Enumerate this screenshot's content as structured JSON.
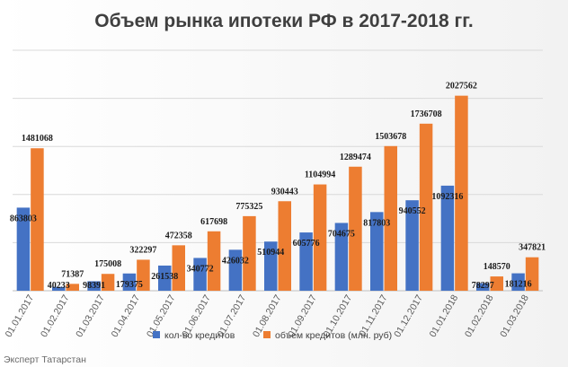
{
  "chart_data": {
    "type": "bar",
    "title": "Объем рынка ипотеки РФ в 2017-2018 гг.",
    "categories": [
      "01.01.2017",
      "01.02.2017",
      "01.03.2017",
      "01.04.2017",
      "01.05.2017",
      "01.06.2017",
      "01.07.2017",
      "01.08.2017",
      "01.09.2017",
      "01.10.2017",
      "01.11.2017",
      "01.12.2017",
      "01.01.2018",
      "01.02.2018",
      "01.03.2018"
    ],
    "series": [
      {
        "name": "кол-во кредитов",
        "color": "#4472c4",
        "values": [
          863803,
          40233,
          98391,
          179375,
          261538,
          340772,
          426032,
          510944,
          605776,
          704675,
          817803,
          940552,
          1092316,
          78297,
          181216
        ],
        "labels": [
          "863803",
          "40233",
          "98391",
          "179375",
          "261538",
          "340772",
          "426032",
          "510944",
          "605776",
          "704675",
          "817803",
          "940552",
          "1092316",
          "78297",
          "181216"
        ]
      },
      {
        "name": "объем кредитов (млн. руб)",
        "color": "#ed7d31",
        "values": [
          1481068,
          71387,
          175008,
          322297,
          472358,
          617698,
          775325,
          930443,
          1104994,
          1289474,
          1503678,
          1736708,
          2027562,
          148570,
          347821
        ],
        "labels": [
          "1481068",
          "71387",
          "175008",
          "322297",
          "472358",
          "617698",
          "775325",
          "930443",
          "1104994",
          "1289474",
          "1503678",
          "1736708",
          "2027562",
          "148570",
          "347821"
        ]
      }
    ],
    "ylim": [
      0,
      2500000
    ],
    "grid": true,
    "legend_position": "bottom"
  },
  "watermark": "Эксперт Татарстан"
}
